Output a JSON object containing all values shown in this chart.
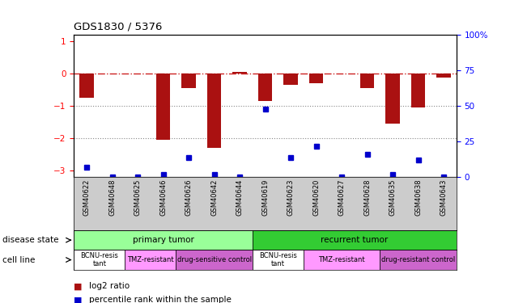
{
  "title": "GDS1830 / 5376",
  "samples": [
    "GSM40622",
    "GSM40648",
    "GSM40625",
    "GSM40646",
    "GSM40626",
    "GSM40642",
    "GSM40644",
    "GSM40619",
    "GSM40623",
    "GSM40620",
    "GSM40627",
    "GSM40628",
    "GSM40635",
    "GSM40638",
    "GSM40643"
  ],
  "log2_ratio": [
    -0.75,
    0.0,
    0.0,
    -2.05,
    -0.45,
    -2.3,
    0.05,
    -0.85,
    -0.35,
    -0.3,
    0.0,
    -0.45,
    -1.55,
    -1.05,
    -0.12
  ],
  "pct_rank": [
    7,
    0,
    0,
    2,
    14,
    2,
    0,
    48,
    14,
    22,
    0,
    16,
    2,
    12,
    0
  ],
  "disease_state": [
    {
      "label": "primary tumor",
      "start": 0,
      "end": 7,
      "color": "#99ff99"
    },
    {
      "label": "recurrent tumor",
      "start": 7,
      "end": 15,
      "color": "#33cc33"
    }
  ],
  "cell_line": [
    {
      "label": "BCNU-resis\ntant",
      "start": 0,
      "end": 2,
      "color": "#ffffff"
    },
    {
      "label": "TMZ-resistant",
      "start": 2,
      "end": 4,
      "color": "#ff99ff"
    },
    {
      "label": "drug-sensitive control",
      "start": 4,
      "end": 7,
      "color": "#cc66cc"
    },
    {
      "label": "BCNU-resis\ntant",
      "start": 7,
      "end": 9,
      "color": "#ffffff"
    },
    {
      "label": "TMZ-resistant",
      "start": 9,
      "end": 12,
      "color": "#ff99ff"
    },
    {
      "label": "drug-resistant control",
      "start": 12,
      "end": 15,
      "color": "#cc66cc"
    }
  ],
  "bar_color": "#aa1111",
  "dot_color": "#0000cc",
  "ref_line_color": "#cc2222",
  "grid_color": "#888888",
  "ylim_left": [
    -3.2,
    1.2
  ],
  "ylim_right": [
    0,
    100
  ],
  "yticks_left": [
    -3,
    -2,
    -1,
    0,
    1
  ],
  "yticks_right": [
    0,
    25,
    50,
    75,
    100
  ],
  "background_color": "#ffffff",
  "label_bg": "#cccccc"
}
